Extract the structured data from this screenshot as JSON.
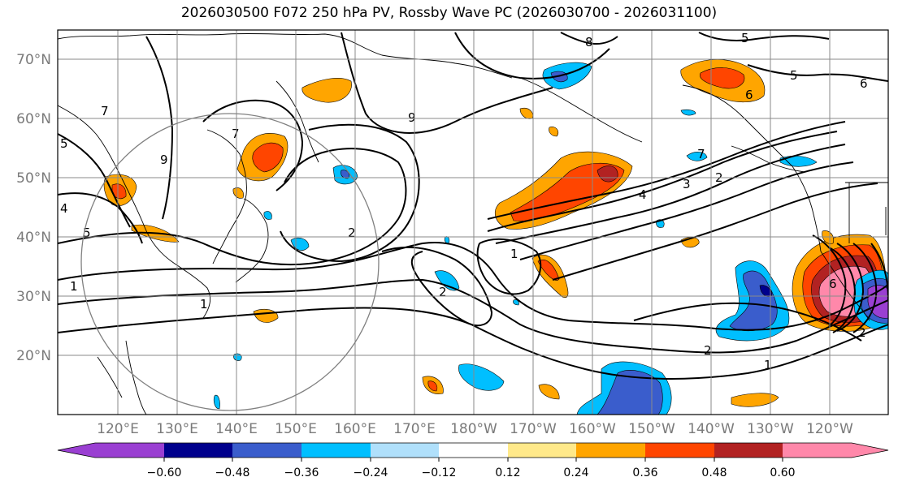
{
  "title": "2026030500 F072 250 hPa PV, Rossby Wave PC (2026030700 - 2026031100)",
  "map": {
    "lat_labels": [
      "70°N",
      "60°N",
      "50°N",
      "40°N",
      "30°N",
      "20°N"
    ],
    "lon_labels": [
      "120°E",
      "130°E",
      "140°E",
      "150°E",
      "160°E",
      "170°E",
      "180°W",
      "170°W",
      "160°W",
      "150°W",
      "140°W",
      "130°W",
      "120°W"
    ],
    "contour_labels": [
      "8",
      "5",
      "5",
      "6",
      "7",
      "6",
      "9",
      "9",
      "4",
      "5",
      "5",
      "7",
      "1",
      "2",
      "1",
      "1",
      "2",
      "4",
      "3",
      "2",
      "7",
      "2",
      "1",
      "2",
      "6"
    ]
  },
  "colorbar": {
    "ticks": [
      "−0.60",
      "−0.48",
      "−0.36",
      "−0.24",
      "−0.12",
      "0.12",
      "0.24",
      "0.36",
      "0.48",
      "0.60"
    ],
    "colors": {
      "min_ext": "#9a3fd2",
      "b1": "#9a3fd2",
      "b2": "#00008c",
      "b3": "#3a5dcc",
      "b4": "#00bfff",
      "b5": "#b0e0fb",
      "b6": "#ffffff",
      "b7": "#ffe98a",
      "b8": "#ffa500",
      "b9": "#ff4500",
      "b10": "#b22222",
      "b11": "#ff88aa",
      "max_ext": "#ff88aa"
    }
  }
}
